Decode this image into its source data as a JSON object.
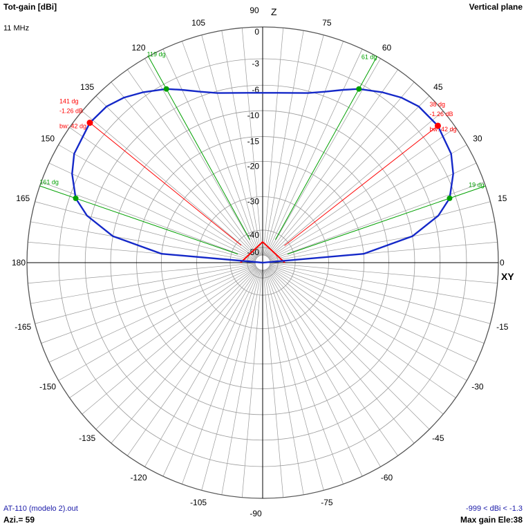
{
  "header": {
    "title": "Tot-gain [dBi]",
    "frequency": "11 MHz",
    "plane": "Vertical plane"
  },
  "footer": {
    "file": "AT-110 (modelo 2).out",
    "azimuth": "Azi.= 59",
    "range": "-999 < dBi < -1.3",
    "max_gain": "Max gain Ele:38"
  },
  "colors": {
    "pattern": "#1428c8",
    "max_lobe": "#ff0000",
    "half_power": "#00a000",
    "grid": "#9a9a9a",
    "axis": "#000000"
  },
  "chart_data": {
    "type": "polar",
    "plane": "vertical",
    "angle_labels": [
      "0",
      "15",
      "30",
      "45",
      "60",
      "75",
      "90",
      "105",
      "120",
      "135",
      "150",
      "165",
      "180",
      "-165",
      "-150",
      "-135",
      "-120",
      "-105",
      "-90",
      "-75",
      "-60",
      "-45",
      "-30",
      "-15"
    ],
    "angle_values": [
      0,
      15,
      30,
      45,
      60,
      75,
      90,
      105,
      120,
      135,
      150,
      165,
      180,
      -165,
      -150,
      -135,
      -120,
      -105,
      -90,
      -75,
      -60,
      -45,
      -30,
      -15
    ],
    "ring_labels": [
      "0",
      "-3",
      "-6",
      "-10",
      "-15",
      "-20",
      "-30",
      "-40",
      "-50"
    ],
    "ring_values_db": [
      0,
      -3,
      -6,
      -10,
      -15,
      -20,
      -30,
      -40,
      -50
    ],
    "axis_labels": {
      "vertical": "Z",
      "horizontal": "XY"
    },
    "series": [
      {
        "angle_deg": [
          0,
          5,
          10,
          15,
          19,
          25,
          30,
          38,
          45,
          50,
          55,
          61,
          65,
          70,
          75,
          80,
          85,
          90,
          95,
          100,
          105,
          110,
          115,
          119,
          125,
          130,
          135,
          141,
          150,
          155,
          161,
          165,
          170,
          175,
          180
        ],
        "gain_db": [
          -999,
          -20,
          -10,
          -5.5,
          -3.7,
          -2.4,
          -1.7,
          -1.26,
          -1.4,
          -1.9,
          -2.6,
          -3.6,
          -4.5,
          -5.5,
          -6.3,
          -6.8,
          -7.1,
          -7.2,
          -7.1,
          -6.8,
          -6.3,
          -5.5,
          -4.5,
          -3.6,
          -2.6,
          -1.9,
          -1.4,
          -1.26,
          -1.7,
          -2.4,
          -3.7,
          -5.5,
          -10,
          -20,
          -999
        ]
      }
    ],
    "max_gain_lobes": [
      {
        "label": "38 dg",
        "gain_label": "-1.26 dB",
        "bw_label": "bw: 42 dg",
        "angle_deg": 38,
        "gain_db": -1.26
      },
      {
        "label": "141 dg",
        "gain_label": "-1.26 dB",
        "bw_label": "bw: 42 dg",
        "angle_deg": 141,
        "gain_db": -1.26
      }
    ],
    "half_power_points": [
      {
        "label": "19 dg",
        "angle_deg": 19,
        "gain_db": -3.7
      },
      {
        "label": "61 dg",
        "angle_deg": 61,
        "gain_db": -3.6
      },
      {
        "label": "119 dg",
        "angle_deg": 119,
        "gain_db": -3.6
      },
      {
        "label": "161 dg",
        "angle_deg": 161,
        "gain_db": -3.7
      }
    ]
  }
}
